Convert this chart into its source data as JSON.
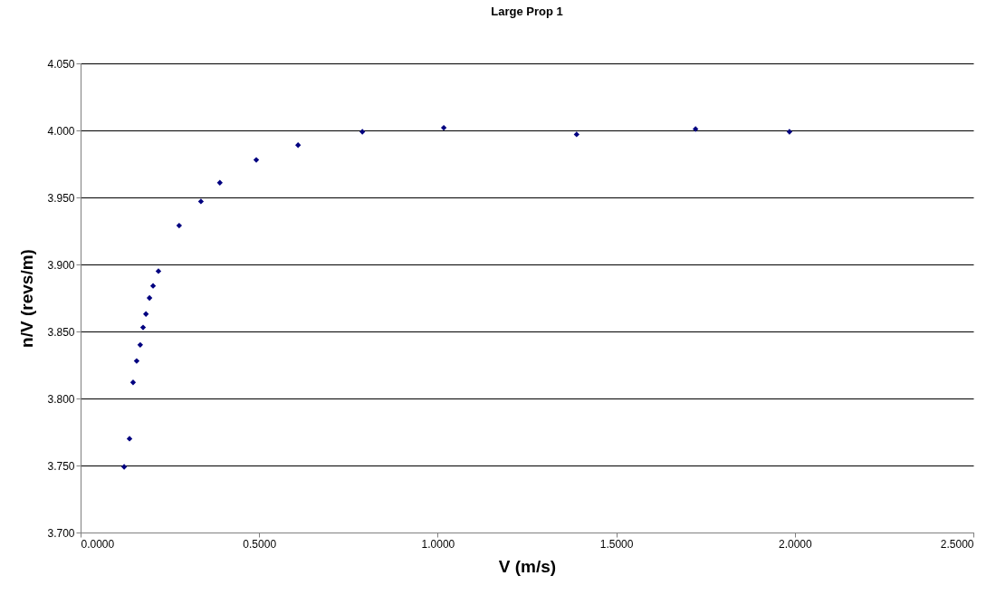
{
  "chart_data": {
    "type": "scatter",
    "title": "Large Prop 1",
    "xlabel": "V (m/s)",
    "ylabel": "n/V (revs/m)",
    "x": [
      0.122,
      0.137,
      0.147,
      0.157,
      0.167,
      0.175,
      0.183,
      0.193,
      0.203,
      0.218,
      0.276,
      0.337,
      0.39,
      0.492,
      0.609,
      0.789,
      1.017,
      1.389,
      1.722,
      1.985
    ],
    "series": [
      {
        "color": "#000080",
        "values": [
          3.749,
          3.77,
          3.812,
          3.828,
          3.84,
          3.853,
          3.863,
          3.875,
          3.884,
          3.895,
          3.929,
          3.947,
          3.961,
          3.978,
          3.989,
          3.999,
          4.002,
          3.997,
          4.001,
          3.999
        ]
      }
    ],
    "xlim": [
      0,
      2.5
    ],
    "xticks": [
      {
        "value": 0,
        "label": "0.0000"
      },
      {
        "value": 0.5,
        "label": "0.5000"
      },
      {
        "value": 1,
        "label": "1.0000"
      },
      {
        "value": 1.5,
        "label": "1.5000"
      },
      {
        "value": 2,
        "label": "2.0000"
      },
      {
        "value": 2.5,
        "label": "2.5000"
      }
    ],
    "ylim": [
      3.7,
      4.05
    ],
    "yticks": [
      {
        "value": 3.7,
        "label": "3.700"
      },
      {
        "value": 3.75,
        "label": "3.750"
      },
      {
        "value": 3.8,
        "label": "3.800"
      },
      {
        "value": 3.85,
        "label": "3.850"
      },
      {
        "value": 3.9,
        "label": "3.900"
      },
      {
        "value": 3.95,
        "label": "3.950"
      },
      {
        "value": 4,
        "label": "4.000"
      },
      {
        "value": 4.05,
        "label": "4.050"
      }
    ],
    "grid": "y",
    "marker": "diamond"
  }
}
